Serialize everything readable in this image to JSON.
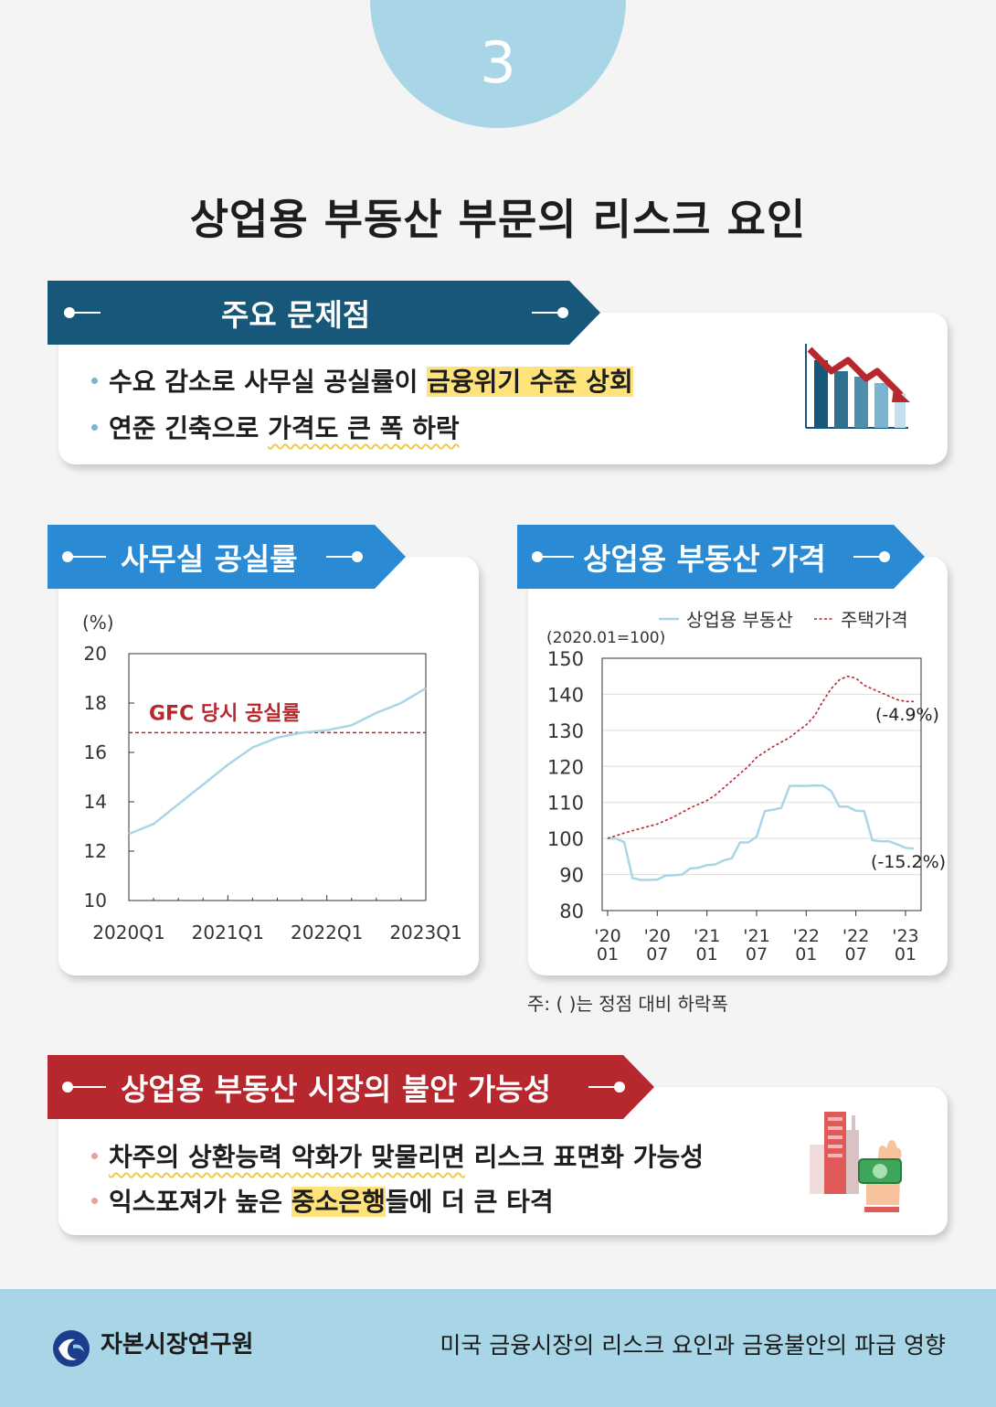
{
  "page": {
    "number": "3",
    "title": "상업용 부동산 부문의 리스크 요인"
  },
  "section1": {
    "heading": "주요 문제점",
    "bullet1_plain": "수요 감소로 사무실 공실률이 ",
    "bullet1_highlight": "금융위기 수준 상회",
    "bullet2_plain": "연준 긴축으로 ",
    "bullet2_underline": "가격도 큰 폭 하락",
    "icon": "bar-chart-down-icon"
  },
  "office_chart": {
    "heading": "사무실 공실률",
    "unit": "(%)",
    "annotation": "GFC 당시  공실률"
  },
  "price_chart": {
    "heading": "상업용 부동산 가격",
    "index_note": "(2020.01=100)",
    "label_cre_drop": "(-15.2%)",
    "label_house_drop": "(-4.9%)",
    "note": "주: ( )는 정점 대비 하락폭"
  },
  "section3": {
    "heading": "상업용 부동산 시장의 불안 가능성",
    "bullet1_underline": "차주의 상환능력 악화가 맞물리면",
    "bullet1_plain": " 리스크 표면화 가능성",
    "bullet2_plain_a": "익스포져가 높은 ",
    "bullet2_highlight": "중소은행",
    "bullet2_plain_b": "들에 더 큰 타격",
    "icon": "building-money-icon"
  },
  "footer": {
    "org": "자본시장연구원",
    "subtitle": "미국 금융시장의 리스크 요인과 금융불안의 파급 영향",
    "logo": "kcmi-logo-icon"
  },
  "colors": {
    "navy": "#17577a",
    "blue": "#2a8ad4",
    "red": "#b7282e",
    "light_blue": "#a9d6e7",
    "highlight": "#ffe37a"
  },
  "chart_data": [
    {
      "type": "line",
      "title": "",
      "ylabel": "(%)",
      "xlabel": "",
      "ylim": [
        10,
        20
      ],
      "yticks": [
        "10",
        "12",
        "14",
        "16",
        "18",
        "20"
      ],
      "xticks": [
        "2020Q1",
        "2021Q1",
        "2022Q1",
        "2023Q1"
      ],
      "x": [
        0,
        1,
        2,
        3,
        4,
        5,
        6,
        7,
        8,
        9,
        10,
        11,
        12
      ],
      "series": [
        {
          "values": [
            12.7,
            13.1,
            13.9,
            14.7,
            15.5,
            16.2,
            16.6,
            16.8,
            16.9,
            17.1,
            17.6,
            18.0,
            18.6
          ],
          "color": "#a9d6e7",
          "style": "solid"
        }
      ],
      "reference_line": {
        "value": 16.8,
        "color": "#b7282e",
        "style": "dashed",
        "label": "GFC 당시  공실률"
      },
      "grid": false
    },
    {
      "type": "line",
      "title": "",
      "ylabel": "(2020.01=100)",
      "xlabel": "",
      "ylim": [
        80,
        150
      ],
      "yticks": [
        "80",
        "90",
        "100",
        "110",
        "120",
        "130",
        "140",
        "150"
      ],
      "xticks": [
        [
          "'20",
          "01"
        ],
        [
          "'20",
          "07"
        ],
        [
          "'21",
          "01"
        ],
        [
          "'21",
          "07"
        ],
        [
          "'22",
          "01"
        ],
        [
          "'22",
          "07"
        ],
        [
          "'23",
          "01"
        ]
      ],
      "grid": true,
      "legend_position": "top",
      "series": [
        {
          "name": "상업용 부동산",
          "color": "#a9d6e7",
          "style": "solid",
          "points": [
            [
              0,
              100
            ],
            [
              1,
              100
            ],
            [
              2,
              99
            ],
            [
              3,
              89
            ],
            [
              4,
              88.5
            ],
            [
              5,
              88.5
            ],
            [
              6,
              88.6
            ],
            [
              7,
              89.7
            ],
            [
              8,
              89.8
            ],
            [
              9,
              90
            ],
            [
              10,
              91.7
            ],
            [
              11,
              91.9
            ],
            [
              12,
              92.6
            ],
            [
              13,
              92.8
            ],
            [
              14,
              93.9
            ],
            [
              15,
              94.5
            ],
            [
              16,
              98.9
            ],
            [
              17,
              98.9
            ],
            [
              18,
              100.5
            ],
            [
              19,
              107.6
            ],
            [
              20,
              108
            ],
            [
              21,
              108.5
            ],
            [
              22,
              114.6
            ],
            [
              23,
              114.6
            ],
            [
              24,
              114.6
            ],
            [
              25,
              114.7
            ],
            [
              26,
              114.7
            ],
            [
              27,
              113.2
            ],
            [
              28,
              108.9
            ],
            [
              29,
              108.8
            ],
            [
              30,
              107.7
            ],
            [
              31,
              107.6
            ],
            [
              32,
              99.5
            ],
            [
              33,
              99.2
            ],
            [
              34,
              99.2
            ],
            [
              35,
              98.4
            ],
            [
              36,
              97.4
            ],
            [
              37,
              97.2
            ]
          ]
        },
        {
          "name": "주택가격",
          "color": "#b7282e",
          "style": "dashed",
          "points": [
            [
              0,
              100
            ],
            [
              2,
              101.5
            ],
            [
              4,
              102.8
            ],
            [
              6,
              104
            ],
            [
              8,
              106
            ],
            [
              10,
              108.5
            ],
            [
              12,
              110.5
            ],
            [
              13,
              112
            ],
            [
              15,
              116
            ],
            [
              17,
              120
            ],
            [
              18,
              122.5
            ],
            [
              20,
              125.5
            ],
            [
              22,
              128
            ],
            [
              23,
              129.8
            ],
            [
              24,
              131.5
            ],
            [
              25,
              134
            ],
            [
              26,
              138
            ],
            [
              27,
              141.5
            ],
            [
              28,
              144
            ],
            [
              29,
              145
            ],
            [
              30,
              144.5
            ],
            [
              31,
              142.5
            ],
            [
              33,
              140.5
            ],
            [
              35,
              138.5
            ],
            [
              36,
              138
            ],
            [
              37,
              138
            ]
          ]
        }
      ],
      "annotations": [
        "(-4.9%)",
        "(-15.2%)"
      ]
    }
  ]
}
